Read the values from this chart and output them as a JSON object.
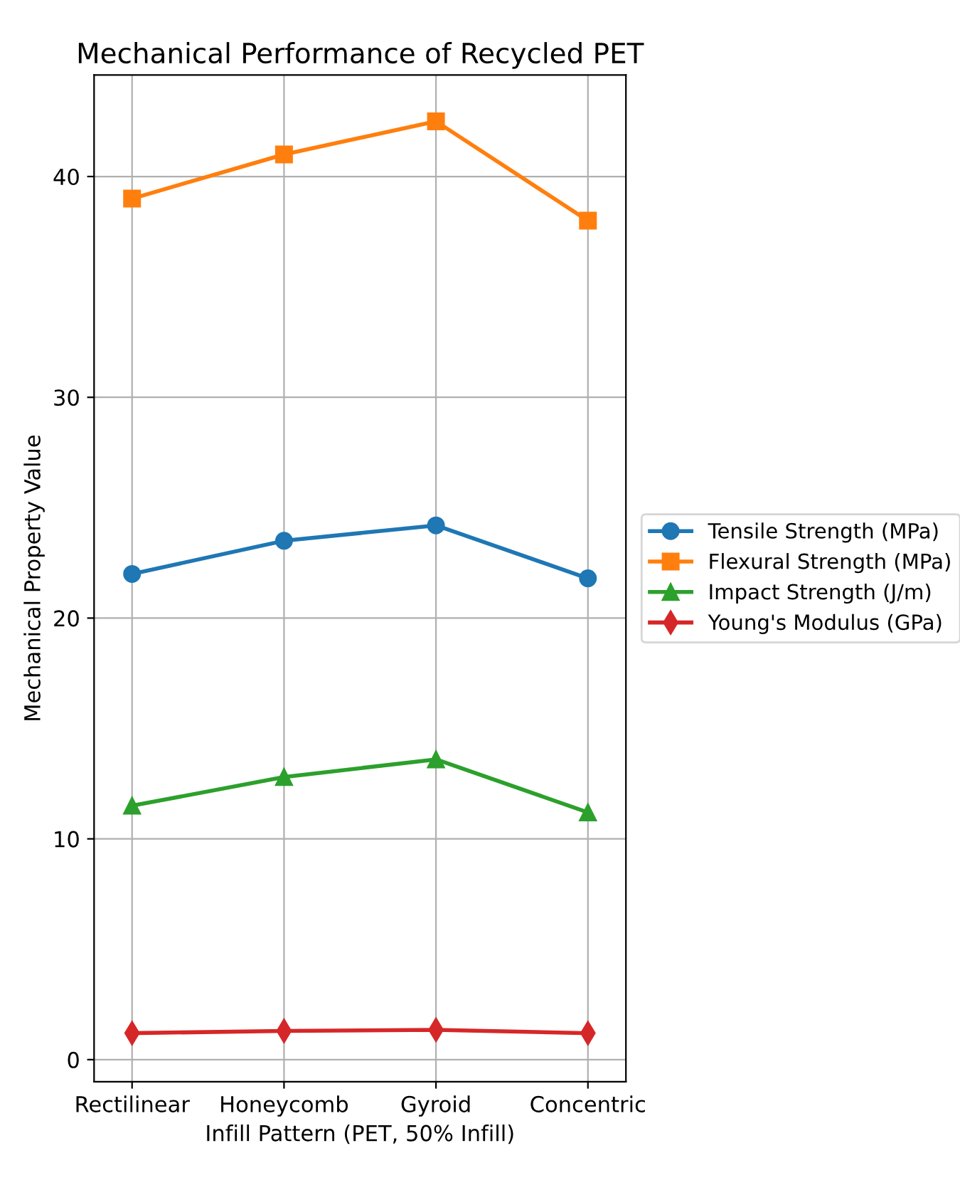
{
  "chart_data": {
    "type": "line",
    "title": "Mechanical Performance of Recycled PET",
    "xlabel": "Infill Pattern (PET, 50% Infill)",
    "ylabel": "Mechanical Property Value",
    "categories": [
      "Rectilinear",
      "Honeycomb",
      "Gyroid",
      "Concentric"
    ],
    "series": [
      {
        "name": "Tensile Strength (MPa)",
        "color": "#1f77b4",
        "marker": "circle",
        "values": [
          22.0,
          23.5,
          24.2,
          21.8
        ]
      },
      {
        "name": "Flexural Strength (MPa)",
        "color": "#ff7f0e",
        "marker": "square",
        "values": [
          39.0,
          41.0,
          42.5,
          38.0
        ]
      },
      {
        "name": "Impact Strength (J/m)",
        "color": "#2ca02c",
        "marker": "triangle",
        "values": [
          11.5,
          12.8,
          13.6,
          11.2
        ]
      },
      {
        "name": "Young's Modulus (GPa)",
        "color": "#d62728",
        "marker": "diamond",
        "values": [
          1.2,
          1.3,
          1.35,
          1.2
        ]
      }
    ],
    "ylim": [
      -1,
      44.6
    ],
    "yticks": [
      0,
      10,
      20,
      30,
      40
    ],
    "grid": true,
    "legend": "right",
    "line_style": "solid"
  }
}
